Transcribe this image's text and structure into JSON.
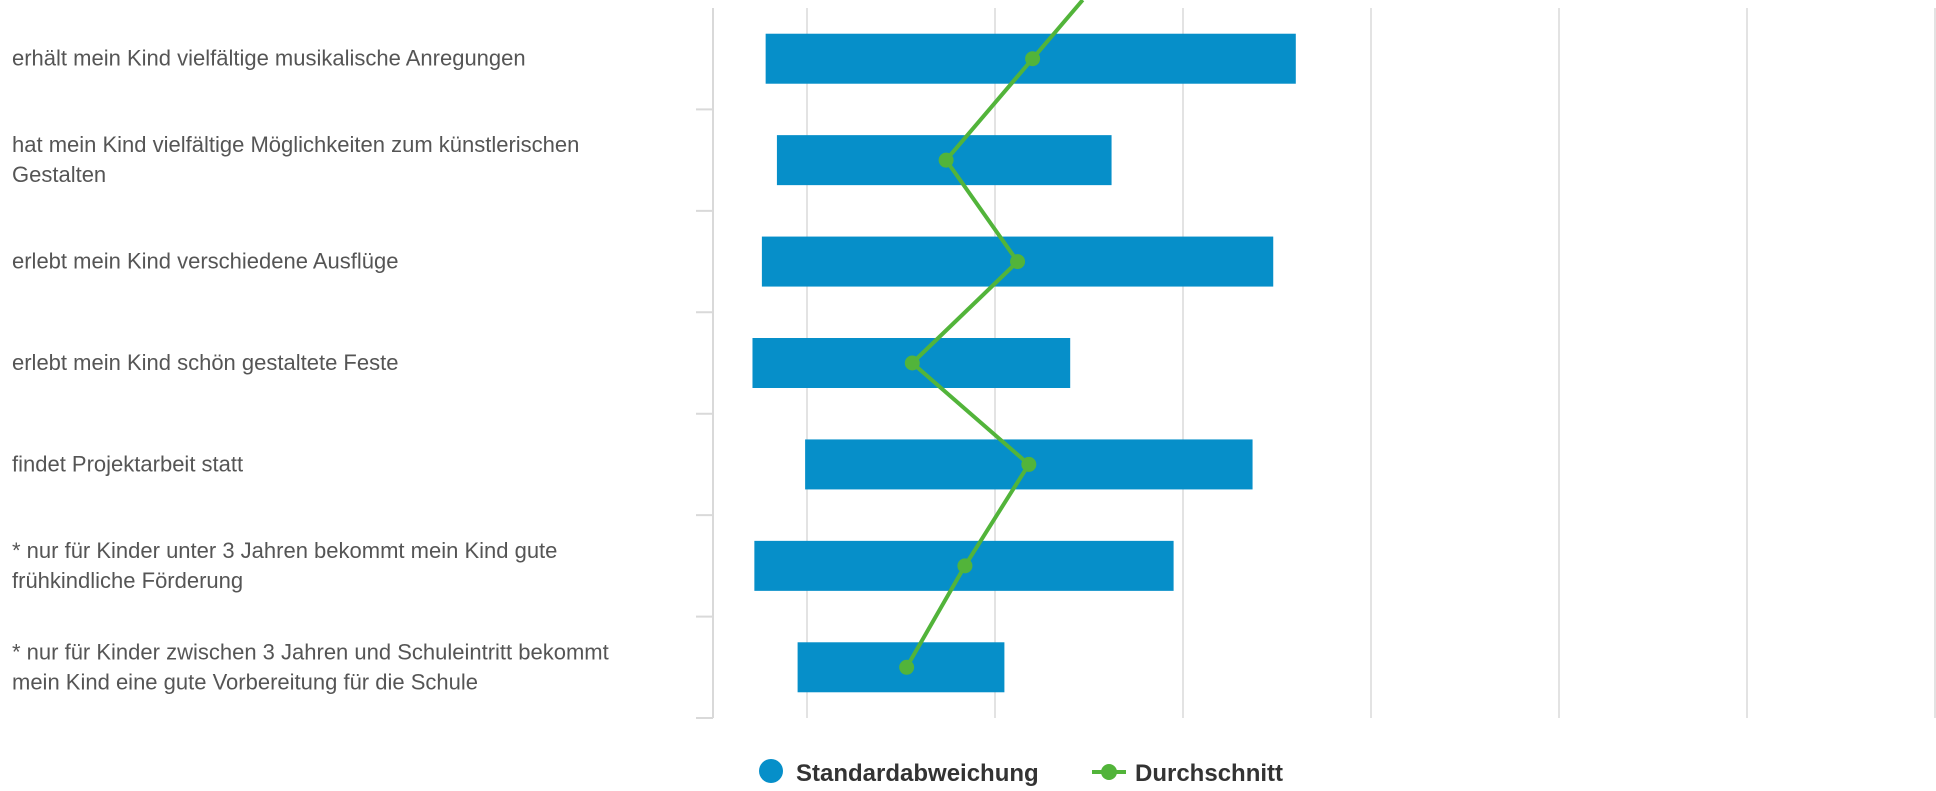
{
  "chart_data": {
    "type": "bar",
    "orientation": "horizontal",
    "bar_style": "floating-range",
    "categories": [
      [
        "erhält mein Kind vielfältige musikalische Anregungen"
      ],
      [
        "hat mein Kind vielfältige Möglichkeiten zum künstlerischen",
        "Gestalten"
      ],
      [
        "erlebt mein Kind verschiedene Ausflüge"
      ],
      [
        "erlebt mein Kind schön gestaltete Feste"
      ],
      [
        "findet Projektarbeit statt"
      ],
      [
        "* nur für Kinder unter 3 Jahren bekommt mein Kind gute",
        "frühkindliche Förderung"
      ],
      [
        "* nur für Kinder zwischen 3 Jahren und Schuleintritt bekommt",
        "mein Kind eine gute Vorbereitung für die Schule"
      ]
    ],
    "series": [
      {
        "name": "Standardabweichung",
        "kind": "range",
        "color": "#068fc9",
        "ranges": [
          [
            0.28,
            3.1
          ],
          [
            0.34,
            2.12
          ],
          [
            0.26,
            2.98
          ],
          [
            0.21,
            1.9
          ],
          [
            0.49,
            2.87
          ],
          [
            0.22,
            2.45
          ],
          [
            0.45,
            1.55
          ]
        ]
      },
      {
        "name": "Durchschnitt",
        "kind": "line",
        "color": "#52b43a",
        "values": [
          1.7,
          1.24,
          1.62,
          1.06,
          1.68,
          1.34,
          1.03
        ]
      }
    ],
    "xlim": [
      0,
      6.5
    ],
    "grid": true,
    "legend": "bottom-center"
  },
  "legend": {
    "items": [
      {
        "label": "Standardabweichung",
        "color": "#068fc9",
        "marker": "circle"
      },
      {
        "label": "Durchschnitt",
        "color": "#52b43a",
        "marker": "line-circle"
      }
    ]
  }
}
